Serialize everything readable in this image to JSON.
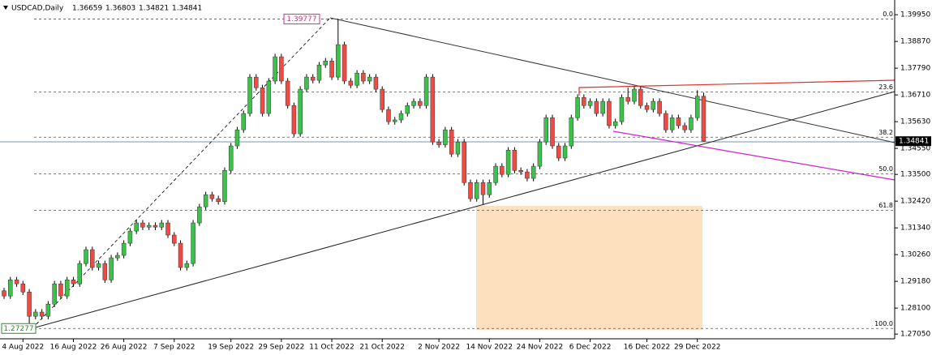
{
  "chart_data": {
    "type": "candlestick",
    "title": "USDCAD,Daily",
    "up_color": "#3cc24a",
    "down_color": "#ef4b45",
    "ylim": [
      1.2686,
      1.4038
    ],
    "yticks": [
      {
        "value": 1.3995,
        "label": "1.39950"
      },
      {
        "value": 1.3887,
        "label": "1.38870"
      },
      {
        "value": 1.3779,
        "label": "1.37790"
      },
      {
        "value": 1.3671,
        "label": "1.36710"
      },
      {
        "value": 1.3563,
        "label": "1.35630"
      },
      {
        "value": 1.3455,
        "label": "1.34550"
      },
      {
        "value": 1.335,
        "label": "1.33500"
      },
      {
        "value": 1.3242,
        "label": "1.32420"
      },
      {
        "value": 1.3134,
        "label": "1.31340"
      },
      {
        "value": 1.3026,
        "label": "1.30260"
      },
      {
        "value": 1.2918,
        "label": "1.29180"
      },
      {
        "value": 1.281,
        "label": "1.28100"
      },
      {
        "value": 1.2705,
        "label": "1.27050"
      }
    ],
    "fib_high": 1.39777,
    "fib_low": 1.27277,
    "fib_levels": [
      {
        "value": 0,
        "label": "0.0"
      },
      {
        "value": 23.6,
        "label": "23.6"
      },
      {
        "value": 38.2,
        "label": "38.2"
      },
      {
        "value": 50,
        "label": "50.0"
      },
      {
        "value": 61.8,
        "label": "61.8"
      },
      {
        "value": 100,
        "label": "100.0"
      }
    ],
    "categories": [
      null,
      null,
      null,
      "4 Aug 2022",
      null,
      null,
      null,
      null,
      null,
      null,
      null,
      "16 Aug 2022",
      null,
      null,
      null,
      null,
      null,
      null,
      null,
      "26 Aug 2022",
      null,
      null,
      null,
      null,
      null,
      null,
      null,
      "7 Sep 2022",
      null,
      null,
      null,
      null,
      null,
      null,
      null,
      null,
      "19 Sep 2022",
      null,
      null,
      null,
      null,
      null,
      null,
      null,
      "29 Sep 2022",
      null,
      null,
      null,
      null,
      null,
      null,
      null,
      "11 Oct 2022",
      null,
      null,
      null,
      null,
      null,
      null,
      null,
      "21 Oct 2022",
      null,
      null,
      null,
      null,
      null,
      null,
      null,
      null,
      "2 Nov 2022",
      null,
      null,
      null,
      null,
      null,
      null,
      null,
      "14 Nov 2022",
      null,
      null,
      null,
      null,
      null,
      null,
      null,
      "24 Nov 2022",
      null,
      null,
      null,
      null,
      null,
      null,
      null,
      "6 Dec 2022",
      null,
      null,
      null,
      null,
      null,
      null,
      null,
      null,
      "16 Dec 2022",
      null,
      null,
      null,
      null,
      null,
      null,
      null,
      "29 Dec 2022",
      null
    ],
    "candles": [
      [
        1.288,
        1.2892,
        1.2847,
        1.2859
      ],
      [
        1.2859,
        1.2936,
        1.2847,
        1.2924
      ],
      [
        1.2924,
        1.2936,
        1.2896,
        1.2908
      ],
      [
        1.2908,
        1.292,
        1.2863,
        1.2875
      ],
      [
        1.2875,
        1.2887,
        1.2728,
        1.2777
      ],
      [
        1.2777,
        1.2806,
        1.2765,
        1.2794
      ],
      [
        1.2794,
        1.2806,
        1.2765,
        1.2777
      ],
      [
        1.2777,
        1.2838,
        1.2765,
        1.2826
      ],
      [
        1.2826,
        1.292,
        1.2814,
        1.2908
      ],
      [
        1.2908,
        1.292,
        1.2847,
        1.2859
      ],
      [
        1.2859,
        1.2936,
        1.2847,
        1.2924
      ],
      [
        1.2924,
        1.2936,
        1.2896,
        1.2908
      ],
      [
        1.2908,
        1.3002,
        1.2896,
        1.299
      ],
      [
        1.299,
        1.3058,
        1.2978,
        1.3046
      ],
      [
        1.3046,
        1.3058,
        1.2962,
        1.2974
      ],
      [
        1.2974,
        1.3002,
        1.2962,
        1.299
      ],
      [
        1.299,
        1.3002,
        1.2912,
        1.2924
      ],
      [
        1.2924,
        1.3025,
        1.2912,
        1.3013
      ],
      [
        1.3013,
        1.3035,
        1.3001,
        1.3023
      ],
      [
        1.3023,
        1.3084,
        1.3011,
        1.3072
      ],
      [
        1.3072,
        1.3133,
        1.306,
        1.3121
      ],
      [
        1.3121,
        1.3166,
        1.3109,
        1.3154
      ],
      [
        1.3154,
        1.3166,
        1.3125,
        1.3137
      ],
      [
        1.3137,
        1.3156,
        1.3125,
        1.3144
      ],
      [
        1.3144,
        1.3156,
        1.3125,
        1.3137
      ],
      [
        1.3137,
        1.3166,
        1.3125,
        1.3154
      ],
      [
        1.3154,
        1.3166,
        1.3093,
        1.3105
      ],
      [
        1.3105,
        1.3117,
        1.306,
        1.3072
      ],
      [
        1.3072,
        1.3084,
        1.2962,
        1.2974
      ],
      [
        1.2974,
        1.3002,
        1.2962,
        1.299
      ],
      [
        1.299,
        1.3166,
        1.2978,
        1.3154
      ],
      [
        1.3154,
        1.3231,
        1.3142,
        1.3219
      ],
      [
        1.3219,
        1.328,
        1.3207,
        1.3268
      ],
      [
        1.3268,
        1.328,
        1.324,
        1.3252
      ],
      [
        1.3252,
        1.3264,
        1.3228,
        1.324
      ],
      [
        1.324,
        1.3378,
        1.3228,
        1.3366
      ],
      [
        1.3366,
        1.3477,
        1.3354,
        1.3465
      ],
      [
        1.3465,
        1.3542,
        1.3453,
        1.353
      ],
      [
        1.353,
        1.3608,
        1.3518,
        1.3596
      ],
      [
        1.3596,
        1.3755,
        1.3584,
        1.3743
      ],
      [
        1.3743,
        1.3755,
        1.3688,
        1.37
      ],
      [
        1.37,
        1.3712,
        1.3584,
        1.3596
      ],
      [
        1.3596,
        1.3739,
        1.3584,
        1.3727
      ],
      [
        1.3727,
        1.3837,
        1.3715,
        1.3825
      ],
      [
        1.3825,
        1.3837,
        1.3715,
        1.3727
      ],
      [
        1.3727,
        1.3739,
        1.3616,
        1.3628
      ],
      [
        1.3628,
        1.364,
        1.3502,
        1.3514
      ],
      [
        1.3514,
        1.3706,
        1.3502,
        1.3694
      ],
      [
        1.3694,
        1.3755,
        1.3682,
        1.3743
      ],
      [
        1.3743,
        1.3755,
        1.3718,
        1.373
      ],
      [
        1.373,
        1.3804,
        1.3718,
        1.3792
      ],
      [
        1.3792,
        1.382,
        1.378,
        1.3808
      ],
      [
        1.3808,
        1.382,
        1.3731,
        1.3743
      ],
      [
        1.3743,
        1.3978,
        1.3731,
        1.3874
      ],
      [
        1.3874,
        1.3886,
        1.3715,
        1.3727
      ],
      [
        1.3727,
        1.3739,
        1.3698,
        1.371
      ],
      [
        1.371,
        1.3771,
        1.3698,
        1.3759
      ],
      [
        1.3759,
        1.3771,
        1.3715,
        1.3727
      ],
      [
        1.3727,
        1.3755,
        1.3715,
        1.3743
      ],
      [
        1.3743,
        1.3755,
        1.3682,
        1.3694
      ],
      [
        1.3694,
        1.3706,
        1.36,
        1.3612
      ],
      [
        1.3612,
        1.3624,
        1.3551,
        1.3563
      ],
      [
        1.3563,
        1.3582,
        1.3551,
        1.357
      ],
      [
        1.357,
        1.3608,
        1.3558,
        1.3596
      ],
      [
        1.3596,
        1.364,
        1.3584,
        1.3628
      ],
      [
        1.3628,
        1.3657,
        1.3616,
        1.3645
      ],
      [
        1.3645,
        1.3657,
        1.3616,
        1.3628
      ],
      [
        1.3628,
        1.3755,
        1.3616,
        1.3743
      ],
      [
        1.3743,
        1.3755,
        1.3469,
        1.3481
      ],
      [
        1.3481,
        1.3493,
        1.3458,
        1.347
      ],
      [
        1.347,
        1.3542,
        1.3458,
        1.353
      ],
      [
        1.353,
        1.3542,
        1.342,
        1.3432
      ],
      [
        1.3432,
        1.3493,
        1.342,
        1.3481
      ],
      [
        1.3481,
        1.3493,
        1.3305,
        1.3317
      ],
      [
        1.3317,
        1.3329,
        1.324,
        1.3252
      ],
      [
        1.3252,
        1.3329,
        1.324,
        1.3317
      ],
      [
        1.3317,
        1.3329,
        1.3228,
        1.3268
      ],
      [
        1.3268,
        1.3329,
        1.3256,
        1.3317
      ],
      [
        1.3317,
        1.3395,
        1.3305,
        1.3383
      ],
      [
        1.3383,
        1.3395,
        1.3338,
        1.335
      ],
      [
        1.335,
        1.346,
        1.3338,
        1.3448
      ],
      [
        1.3448,
        1.346,
        1.3354,
        1.3366
      ],
      [
        1.3366,
        1.3378,
        1.3348,
        1.336
      ],
      [
        1.336,
        1.3372,
        1.3322,
        1.3334
      ],
      [
        1.3334,
        1.3395,
        1.3322,
        1.3383
      ],
      [
        1.3383,
        1.3493,
        1.3371,
        1.3481
      ],
      [
        1.3481,
        1.3591,
        1.3469,
        1.3579
      ],
      [
        1.3579,
        1.3591,
        1.3453,
        1.3465
      ],
      [
        1.3465,
        1.3477,
        1.3404,
        1.3416
      ],
      [
        1.3416,
        1.3477,
        1.3404,
        1.3465
      ],
      [
        1.3465,
        1.3591,
        1.3453,
        1.3579
      ],
      [
        1.3579,
        1.3673,
        1.3567,
        1.3661
      ],
      [
        1.3661,
        1.3673,
        1.3616,
        1.3628
      ],
      [
        1.3628,
        1.3657,
        1.3616,
        1.3645
      ],
      [
        1.3645,
        1.3657,
        1.3584,
        1.3596
      ],
      [
        1.3596,
        1.3657,
        1.3584,
        1.3645
      ],
      [
        1.3645,
        1.3657,
        1.3535,
        1.3547
      ],
      [
        1.3547,
        1.3575,
        1.3535,
        1.3563
      ],
      [
        1.3563,
        1.3673,
        1.3551,
        1.3661
      ],
      [
        1.3661,
        1.37,
        1.3633,
        1.3645
      ],
      [
        1.3645,
        1.3706,
        1.3633,
        1.3694
      ],
      [
        1.3694,
        1.3706,
        1.3616,
        1.3628
      ],
      [
        1.3628,
        1.364,
        1.36,
        1.3612
      ],
      [
        1.3612,
        1.3657,
        1.36,
        1.3645
      ],
      [
        1.3645,
        1.3657,
        1.3584,
        1.3596
      ],
      [
        1.3596,
        1.3608,
        1.3518,
        1.353
      ],
      [
        1.353,
        1.3591,
        1.3518,
        1.3579
      ],
      [
        1.3579,
        1.3591,
        1.3535,
        1.3547
      ],
      [
        1.3547,
        1.3559,
        1.3518,
        1.353
      ],
      [
        1.353,
        1.3591,
        1.3518,
        1.3579
      ],
      [
        1.3579,
        1.369,
        1.3567,
        1.3666
      ],
      [
        1.36659,
        1.36803,
        1.34821,
        1.34841
      ]
    ]
  }
}
